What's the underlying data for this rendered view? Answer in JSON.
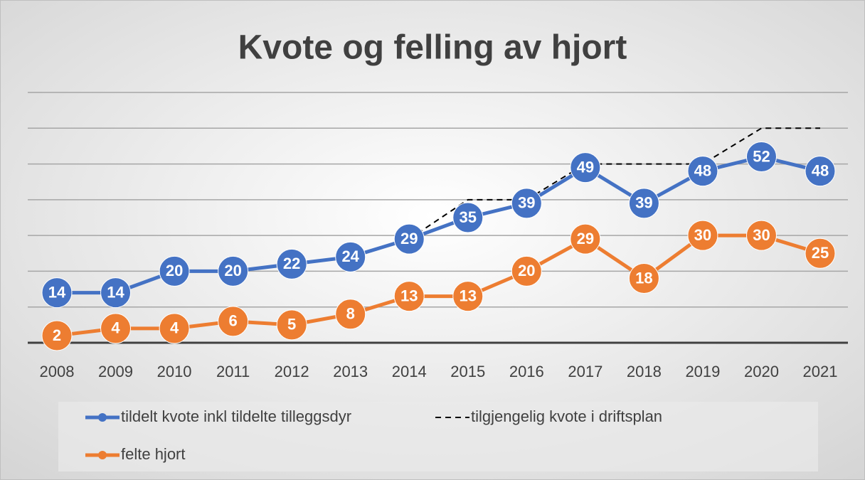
{
  "chart_data": {
    "type": "line",
    "title": "Kvote og felling av hjort",
    "categories": [
      "2008",
      "2009",
      "2010",
      "2011",
      "2012",
      "2013",
      "2014",
      "2015",
      "2016",
      "2017",
      "2018",
      "2019",
      "2020",
      "2021"
    ],
    "series": [
      {
        "name": "tildelt kvote inkl tildelte tilleggsdyr",
        "color": "#4472c4",
        "style": "solid",
        "markers": true,
        "data_labels": true,
        "values": [
          14,
          14,
          20,
          20,
          22,
          24,
          29,
          35,
          39,
          49,
          39,
          48,
          52,
          48
        ]
      },
      {
        "name": "tilgjengelig kvote i driftsplan",
        "color": "#000000",
        "style": "dashed",
        "markers": false,
        "data_labels": false,
        "values": [
          null,
          null,
          null,
          null,
          null,
          null,
          29,
          40,
          40,
          50,
          50,
          50,
          60,
          60
        ]
      },
      {
        "name": "felte hjort",
        "color": "#ed7d31",
        "style": "solid",
        "markers": true,
        "data_labels": true,
        "values": [
          2,
          4,
          4,
          6,
          5,
          8,
          13,
          13,
          20,
          29,
          18,
          30,
          30,
          25
        ]
      }
    ],
    "ylim": [
      0,
      70
    ],
    "yticks": [
      0,
      10,
      20,
      30,
      40,
      50,
      60,
      70
    ],
    "grid": true,
    "legend": "bottom"
  }
}
